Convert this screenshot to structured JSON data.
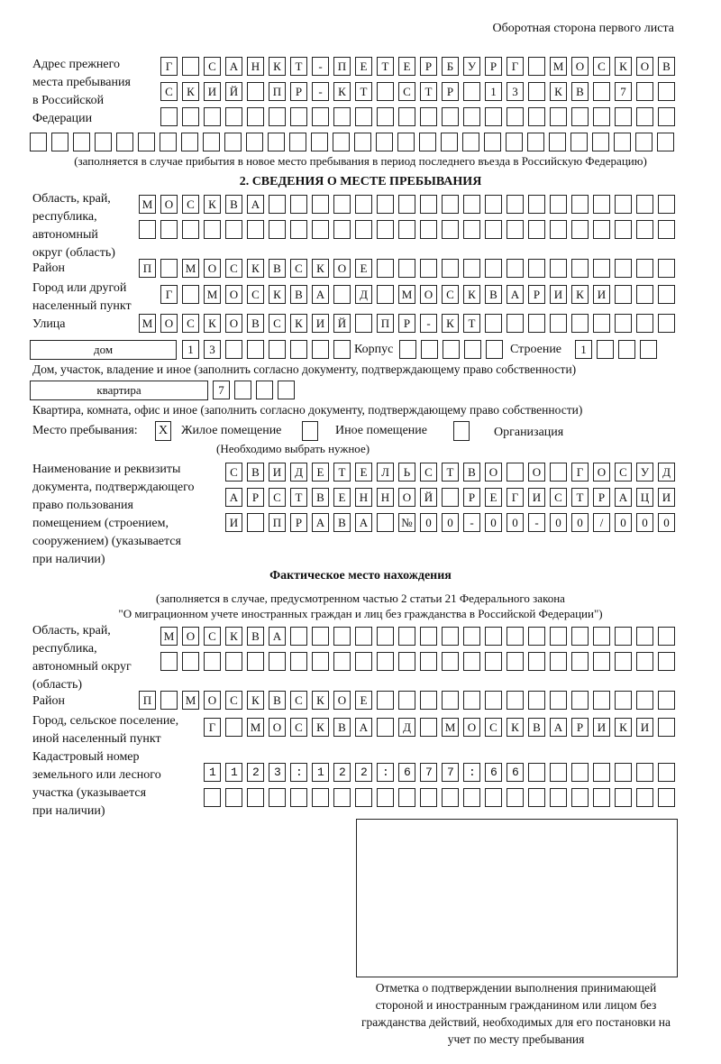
{
  "header": {
    "sheet_side": "Оборотная сторона первого листа"
  },
  "prev_address": {
    "label": "Адрес прежнего\nместа пребывания\nв Российской\nФедерации",
    "rows": [
      "Г САНКТ-ПЕТЕРБУРГ МОСКОВ",
      "СКИЙ ПР-КТ СТР 13 КВ 7  ",
      "                        ",
      "                              "
    ],
    "note": "(заполняется в случае прибытия в новое место пребывания в период последнего въезда в Российскую Федерацию)"
  },
  "stay": {
    "heading": "2. СВЕДЕНИЯ О МЕСТЕ ПРЕБЫВАНИЯ",
    "region_label": "Область, край,\nреспублика,\nавтономный\nокруг (область)",
    "region_rows": [
      "МОСКВА                   ",
      "                         "
    ],
    "district_label": "Район",
    "district_row": "П МОСКВСКОЕ              ",
    "city_label": "Город или другой\nнаселенный пункт",
    "city_row": "Г МОСКВА Д МОСКВАРИКИ   ",
    "street_label": "Улица",
    "street_row": "МОСКОВСКИЙ ПР-КТ         ",
    "house_type": "дом",
    "house_row": "13      ",
    "korpus_label": "Корпус",
    "korpus_row": "     ",
    "building_label": "Строение",
    "building_row": "1   ",
    "house_note": "Дом, участок, владение и иное (заполнить согласно документу, подтверждающему право собственности)",
    "flat_type": "квартира",
    "flat_row": "7   ",
    "flat_note": "Квартира, комната, офис и иное (заполнить согласно документу, подтверждающему право собственности)",
    "place_label": "Место пребывания:",
    "options": [
      {
        "label": "Жилое помещение",
        "mark": "X"
      },
      {
        "label": "Иное помещение",
        "mark": ""
      },
      {
        "label": "Организация",
        "mark": ""
      }
    ],
    "options_note": "(Необходимо выбрать нужное)",
    "doc_label": "Наименование и реквизиты\nдокумента, подтверждающего\nправо пользования\nпомещением (строением,\nсооружением) (указывается\nпри наличии)",
    "doc_rows": [
      "СВИДЕТЕЛЬСТВО О ГОСУД",
      "АРСТВЕННОЙ РЕГИСТРАЦИ",
      "И ПРАВА №00-00-00/000"
    ]
  },
  "actual": {
    "heading": "Фактическое место нахождения",
    "note1": "(заполняется в случае, предусмотренном частью 2 статьи 21 Федерального закона",
    "note2": "\"О миграционном учете иностранных граждан и лиц без гражданства в Российской Федерации\")",
    "region_label": "Область, край,\nреспублика,\nавтономный округ\n(область)",
    "region_rows": [
      "МОСКВА                  ",
      "                        "
    ],
    "district_label": "Район",
    "district_row": "П МОСКВСКОЕ              ",
    "city_label": "Город, сельское поселение,\nиной населенный пункт",
    "city_row": "Г МОСКВА Д МОСКВАРИКИ ",
    "cadastre_label": "Кадастровый номер\nземельного или лесного\nучастка (указывается\nпри наличии)",
    "cadastre_rows": [
      "1123:122:677:66       ",
      "                      "
    ]
  },
  "stamp": {
    "caption": "Отметка о подтверждении выполнения принимающей стороной и иностранным гражданином или лицом без гражданства действий, необходимых для его постановки на учет по месту пребывания"
  }
}
